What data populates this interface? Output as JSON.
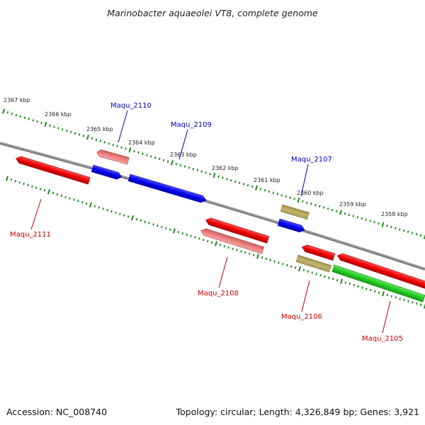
{
  "title": "Marinobacter aquaeolei VT8, complete genome",
  "footer": {
    "accession": "Accession: NC_008740",
    "summary": "Topology: circular; Length: 4,326,849 bp; Genes: 3,921"
  },
  "colors": {
    "backbone": "#7f7f7f",
    "tick": "#1a8a1a",
    "label_plus": "#0000bb",
    "label_minus": "#cc0000"
  },
  "scale_labels": [
    "2367 kbp",
    "2366 kbp",
    "2365 kbp",
    "2364 kbp",
    "2363 kbp",
    "2362 kbp",
    "2361 kbp",
    "2360 kbp",
    "2359 kbp",
    "2358 kbp"
  ],
  "gene_labels": [
    {
      "id": "Maqu_2110",
      "strand": "plus"
    },
    {
      "id": "Maqu_2109",
      "strand": "plus"
    },
    {
      "id": "Maqu_2107",
      "strand": "plus"
    },
    {
      "id": "Maqu_2111",
      "strand": "minus"
    },
    {
      "id": "Maqu_2108",
      "strand": "minus"
    },
    {
      "id": "Maqu_2106",
      "strand": "minus"
    },
    {
      "id": "Maqu_2105",
      "strand": "minus"
    }
  ],
  "features": [
    {
      "name": "cds-plus-1",
      "color": "#0000ee"
    },
    {
      "name": "cds-plus-2",
      "color": "#0000ee"
    },
    {
      "name": "cds-plus-3",
      "color": "#0000ee"
    },
    {
      "name": "cds-minus-1",
      "color": "#ee0000"
    },
    {
      "name": "cds-minus-2",
      "color": "#ee0000"
    },
    {
      "name": "cds-minus-3",
      "color": "#ee0000"
    },
    {
      "name": "cds-minus-4",
      "color": "#ee0000"
    },
    {
      "name": "gene-minus-1",
      "color": "#f08080"
    },
    {
      "name": "gene-minus-2",
      "color": "#f08080"
    },
    {
      "name": "misc-1",
      "color": "#b5a860"
    },
    {
      "name": "misc-2",
      "color": "#b5a860"
    },
    {
      "name": "rna-1",
      "color": "#22cc22"
    }
  ]
}
